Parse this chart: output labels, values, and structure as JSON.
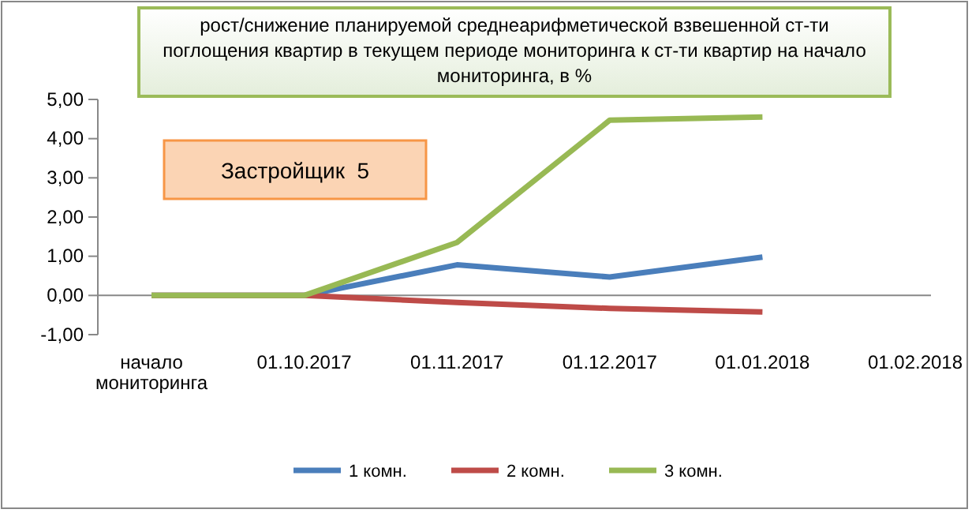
{
  "chart_data": {
    "type": "line",
    "title": "рост/снижение планируемой среднеарифметической взвешенной  ст-ти поглощения  квартир в текущем периоде мониторинга к ст-ти квартир на начало мониторинга, в %",
    "categories": [
      "начало мониторинга",
      "01.10.2017",
      "01.11.2017",
      "01.12.2017",
      "01.01.2018",
      "01.02.2018"
    ],
    "series": [
      {
        "name": "1 комн.",
        "color": "#4a7ebb",
        "values": [
          0,
          0,
          0.78,
          0.47,
          0.98,
          null
        ]
      },
      {
        "name": "2 комн.",
        "color": "#be4b48",
        "values": [
          0,
          0,
          -0.18,
          -0.33,
          -0.42,
          null
        ]
      },
      {
        "name": "3 комн.",
        "color": "#98b954",
        "values": [
          0,
          0,
          1.35,
          4.47,
          4.55,
          null
        ]
      }
    ],
    "ylim": [
      -1,
      5
    ],
    "yticks": [
      {
        "value": -1,
        "label": "-1,00"
      },
      {
        "value": 0,
        "label": "0,00"
      },
      {
        "value": 1,
        "label": "1,00"
      },
      {
        "value": 2,
        "label": "2,00"
      },
      {
        "value": 3,
        "label": "3,00"
      },
      {
        "value": 4,
        "label": "4,00"
      },
      {
        "value": 5,
        "label": "5,00"
      }
    ],
    "annotations": [
      "Застройщик  5"
    ],
    "legend": "bottom",
    "marker": "none",
    "line_style": "solid"
  }
}
